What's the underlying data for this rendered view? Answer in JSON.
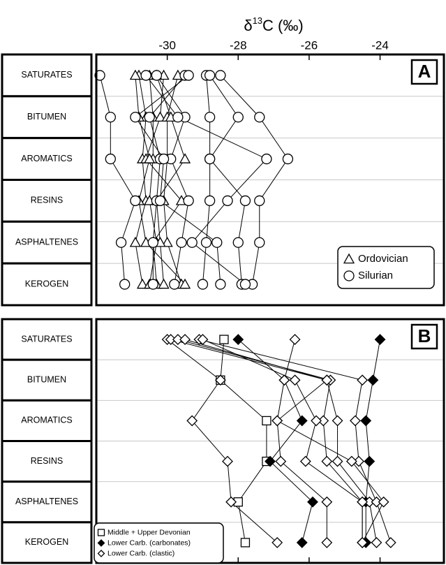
{
  "chart_data": [
    {
      "type": "line",
      "x_label": {
        "symbol": "δ",
        "sup": "13",
        "rest": "C (‰)"
      },
      "panel_label": "A",
      "categories": [
        "SATURATES",
        "BITUMEN",
        "AROMATICS",
        "RESINS",
        "ASPHALTENES",
        "KEROGEN"
      ],
      "xlim": [
        -32,
        -22.2
      ],
      "xticks": [
        -30,
        -28,
        -26,
        -24
      ],
      "grid": true,
      "legend": "lower right",
      "groups": [
        {
          "name": "Ordovician",
          "marker": "triangle",
          "color": "#ffffff",
          "lines": [
            [
              -30.8,
              -30.6,
              -30.7,
              -30.6,
              -30.9,
              -30.7
            ],
            [
              -30.5,
              -30.4,
              -30.4,
              -30.5,
              -30.3,
              -30.5
            ],
            [
              -30.1,
              -30.2,
              -30.6,
              -29.6,
              -30.4,
              -30.3
            ],
            [
              -29.7,
              -30.0,
              -30.0,
              -30.1,
              -30.0,
              -29.6
            ],
            [
              -30.9,
              -30.8,
              -30.5,
              -30.8,
              -30.6,
              -29.5
            ],
            [
              -30.3,
              -29.9,
              -29.5,
              -30.3,
              -30.2,
              -30.1
            ]
          ]
        },
        {
          "name": "Silurian",
          "marker": "circle",
          "color": "#ffffff",
          "lines": [
            [
              -31.9,
              -31.6,
              -31.6,
              -30.9,
              -31.3,
              -31.2
            ],
            [
              -29.5,
              -30.5,
              -30.2,
              -30.3,
              -30.4,
              -30.4
            ],
            [
              -28.9,
              -28.8,
              -28.8,
              -28.8,
              -28.9,
              -29.0
            ],
            [
              -28.8,
              -28.0,
              -28.8,
              -27.8,
              -28.0,
              -27.9
            ],
            [
              -28.5,
              -27.4,
              -26.6,
              -27.4,
              -27.4,
              -27.6
            ],
            [
              -30.3,
              -29.5,
              -29.9,
              -29.4,
              -29.6,
              -29.8
            ],
            [
              -29.4,
              -30.9,
              -30.1,
              -30.2,
              -28.6,
              -28.5
            ],
            [
              -30.6,
              -29.7,
              -27.2,
              -28.3,
              -29.3,
              -27.8
            ]
          ]
        }
      ]
    },
    {
      "type": "line",
      "panel_label": "B",
      "categories": [
        "SATURATES",
        "BITUMEN",
        "AROMATICS",
        "RESINS",
        "ASPHALTENES",
        "KEROGEN"
      ],
      "xlim": [
        -32,
        -22.2
      ],
      "xticks": [
        -30,
        -28,
        -26,
        -24
      ],
      "grid": true,
      "legend": "lower left",
      "groups": [
        {
          "name": "Middle + Upper Devonian",
          "marker": "square",
          "color": "#ffffff",
          "lines": [
            [
              -28.4,
              -28.5,
              -27.2,
              -27.2,
              -28.0,
              -27.8
            ]
          ]
        },
        {
          "name": "Lower Carb. (carbonates)",
          "marker": "diamond",
          "color": "#000000",
          "lines": [
            [
              -28.0,
              -26.7,
              -26.2,
              -27.1,
              -25.9,
              -26.2
            ],
            [
              -24.0,
              -24.2,
              -24.4,
              -24.3,
              -24.4,
              -24.4
            ]
          ]
        },
        {
          "name": "Lower Carb. (clastic)",
          "marker": "diamond",
          "color": "#ffffff",
          "lines": [
            [
              -30.0,
              -28.5,
              -29.3,
              -28.3,
              -28.2,
              -26.9
            ],
            [
              -29.9,
              -25.5,
              -26.9,
              -26.8,
              -25.5,
              -25.5
            ],
            [
              -29.7,
              -25.4,
              -25.6,
              -25.5,
              -24.5,
              -24.5
            ],
            [
              -29.5,
              -25.5,
              -25.2,
              -25.2,
              -24.3,
              -24.1
            ],
            [
              -29.1,
              -24.5,
              -24.7,
              -24.6,
              -24.1,
              -23.7
            ],
            [
              -29.0,
              -26.4,
              -25.8,
              -26.1,
              -24.5,
              -24.5
            ],
            [
              -26.4,
              -26.7,
              -26.9,
              -24.8,
              -23.9,
              -24.5
            ]
          ]
        }
      ]
    }
  ]
}
